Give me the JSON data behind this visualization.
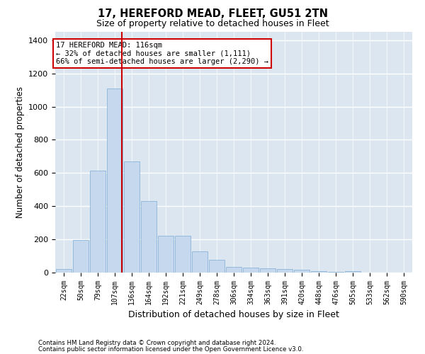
{
  "title": "17, HEREFORD MEAD, FLEET, GU51 2TN",
  "subtitle": "Size of property relative to detached houses in Fleet",
  "xlabel": "Distribution of detached houses by size in Fleet",
  "ylabel": "Number of detached properties",
  "bar_color": "#c5d8ee",
  "bar_edge_color": "#8ab4d8",
  "background_color": "#dce6f0",
  "grid_color": "#ffffff",
  "categories": [
    "22sqm",
    "50sqm",
    "79sqm",
    "107sqm",
    "136sqm",
    "164sqm",
    "192sqm",
    "221sqm",
    "249sqm",
    "278sqm",
    "306sqm",
    "334sqm",
    "363sqm",
    "391sqm",
    "420sqm",
    "448sqm",
    "476sqm",
    "505sqm",
    "533sqm",
    "562sqm",
    "590sqm"
  ],
  "values": [
    20,
    195,
    615,
    1110,
    670,
    430,
    220,
    220,
    130,
    75,
    35,
    30,
    25,
    20,
    15,
    10,
    5,
    8,
    0,
    0,
    0
  ],
  "ylim": [
    0,
    1450
  ],
  "yticks": [
    0,
    200,
    400,
    600,
    800,
    1000,
    1200,
    1400
  ],
  "vline_color": "#cc0000",
  "annotation_text": "17 HEREFORD MEAD: 116sqm\n← 32% of detached houses are smaller (1,111)\n66% of semi-detached houses are larger (2,290) →",
  "box_color": "#cc0000",
  "footer_line1": "Contains HM Land Registry data © Crown copyright and database right 2024.",
  "footer_line2": "Contains public sector information licensed under the Open Government Licence v3.0."
}
